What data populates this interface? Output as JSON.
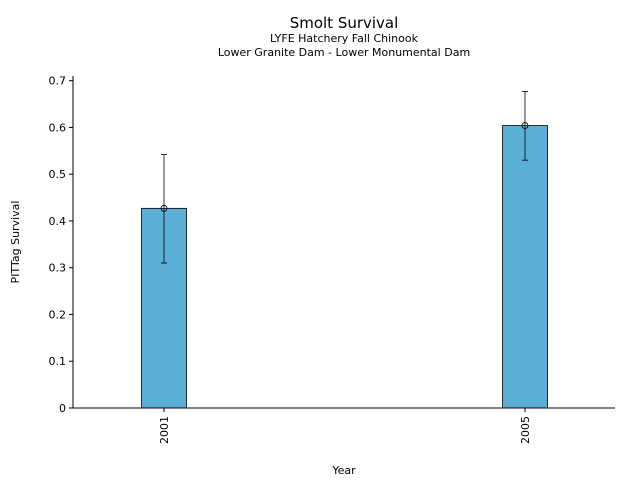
{
  "chart_data": {
    "type": "bar",
    "title": "Smolt Survival",
    "subtitle_lines": [
      "LYFE Hatchery Fall Chinook",
      "Lower Granite Dam - Lower Monumental Dam"
    ],
    "xlabel": "Year",
    "ylabel": "PITTag Survival",
    "categories": [
      "2001",
      "2005"
    ],
    "values": [
      0.427,
      0.604
    ],
    "error_low": [
      0.31,
      0.53
    ],
    "error_high": [
      0.542,
      0.677
    ],
    "ylim": [
      0,
      0.71
    ],
    "yticks": [
      "0",
      "0.1",
      "0.2",
      "0.3",
      "0.4",
      "0.5",
      "0.6",
      "0.7"
    ],
    "ytick_values": [
      0,
      0.1,
      0.2,
      0.3,
      0.4,
      0.5,
      0.6,
      0.7
    ],
    "bar_color": "#5bafd7",
    "grid": false,
    "legend": "none"
  }
}
